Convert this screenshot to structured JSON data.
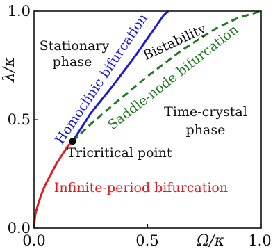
{
  "chart_data": {
    "type": "line",
    "xlabel": "Ω/κ",
    "ylabel": "λ/κ",
    "xlim": [
      0.0,
      1.0
    ],
    "ylim": [
      0.0,
      1.0
    ],
    "x_tick_labels": [
      "0.0",
      "0.5",
      "1.0"
    ],
    "y_tick_labels": [
      "0.0",
      "0.5",
      "1.0"
    ],
    "grid": false,
    "series": [
      {
        "name": "Infinite-period bifurcation",
        "color": "#e41a1c",
        "style": "solid",
        "x": [
          0.0,
          0.005,
          0.015,
          0.03,
          0.05,
          0.075,
          0.1,
          0.125,
          0.15,
          0.17
        ],
        "y": [
          0.0,
          0.06,
          0.1,
          0.15,
          0.2,
          0.25,
          0.3,
          0.34,
          0.38,
          0.4
        ]
      },
      {
        "name": "Homoclinic bifurcation",
        "color": "#1a1ad6",
        "style": "solid",
        "x": [
          0.17,
          0.25,
          0.35,
          0.45,
          0.57,
          0.59
        ],
        "y": [
          0.4,
          0.53,
          0.66,
          0.8,
          0.98,
          1.0
        ]
      },
      {
        "name": "Saddle-node bifurcation",
        "color": "#1f7a1f",
        "style": "dashed",
        "x": [
          0.17,
          0.25,
          0.35,
          0.5,
          0.65,
          0.8,
          0.9,
          1.0
        ],
        "y": [
          0.4,
          0.48,
          0.57,
          0.7,
          0.82,
          0.92,
          0.97,
          1.0
        ]
      }
    ],
    "points": [
      {
        "name": "Tricritical point",
        "x": 0.17,
        "y": 0.4
      }
    ],
    "annotations": [
      {
        "text": "Stationary",
        "color": "#111111"
      },
      {
        "text": "phase",
        "color": "#111111"
      },
      {
        "text": "Bistability",
        "color": "#111111"
      },
      {
        "text": "Time-crystal",
        "color": "#111111"
      },
      {
        "text": "phase",
        "color": "#111111"
      },
      {
        "text": "Tricritical point",
        "color": "#111111"
      },
      {
        "text": "Homoclinic bifurcation",
        "color": "#1a1ad6"
      },
      {
        "text": "Saddle-node bifurcation",
        "color": "#1f7a1f"
      },
      {
        "text": "Infinite-period bifurcation",
        "color": "#e41a1c"
      }
    ]
  }
}
